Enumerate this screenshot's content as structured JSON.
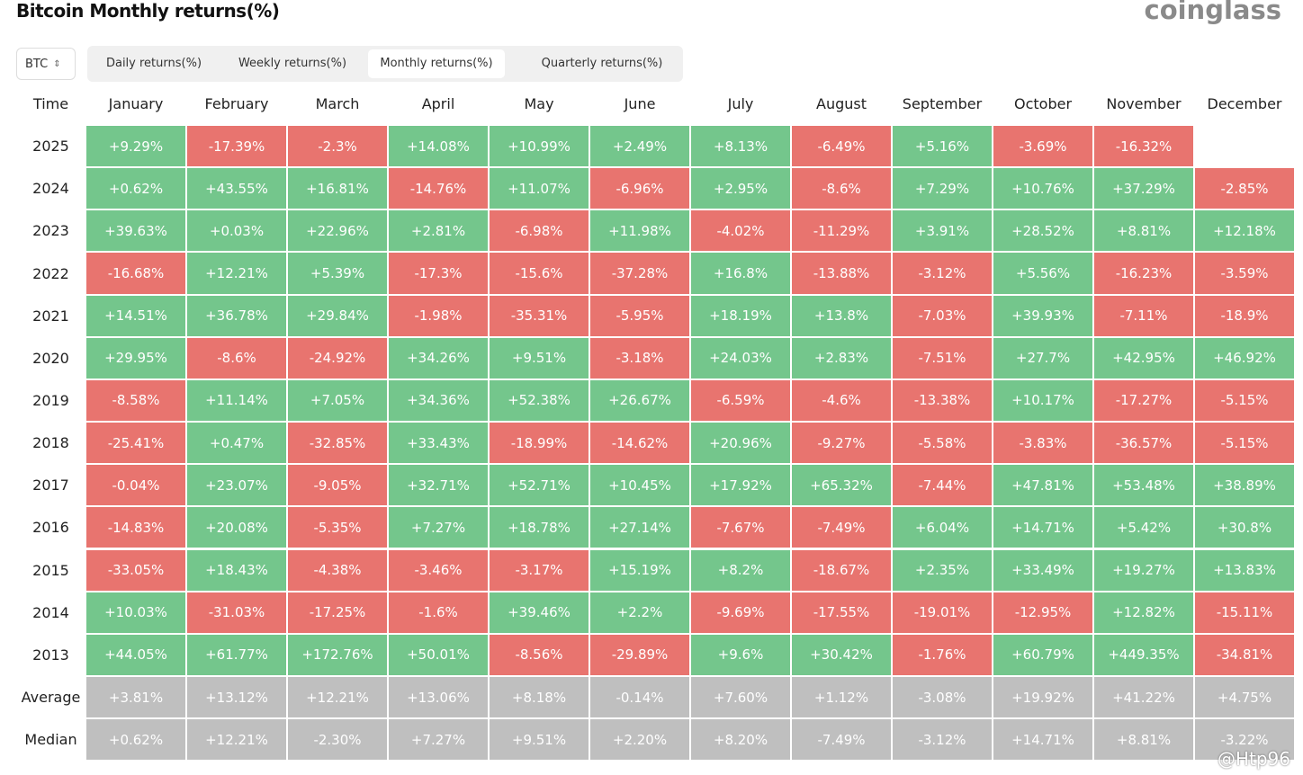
{
  "header": {
    "title": "Bitcoin Monthly returns(%)",
    "logo": "coinglass"
  },
  "controls": {
    "asset": "BTC",
    "tabs": [
      "Daily returns(%)",
      "Weekly returns(%)",
      "Monthly returns(%)",
      "Quarterly returns(%)"
    ],
    "active_tab": 2
  },
  "table": {
    "columns": [
      "Time",
      "January",
      "February",
      "March",
      "April",
      "May",
      "June",
      "July",
      "August",
      "September",
      "October",
      "November",
      "December"
    ],
    "colors": {
      "positive": "#74c68c",
      "negative": "#e8746f",
      "summary": "#bfbfbf"
    },
    "rows": [
      {
        "label": "2025",
        "cells": [
          "+9.29%",
          "-17.39%",
          "-2.3%",
          "+14.08%",
          "+10.99%",
          "+2.49%",
          "+8.13%",
          "-6.49%",
          "+5.16%",
          "-3.69%",
          "-16.32%",
          null
        ]
      },
      {
        "label": "2024",
        "cells": [
          "+0.62%",
          "+43.55%",
          "+16.81%",
          "-14.76%",
          "+11.07%",
          "-6.96%",
          "+2.95%",
          "-8.6%",
          "+7.29%",
          "+10.76%",
          "+37.29%",
          "-2.85%"
        ]
      },
      {
        "label": "2023",
        "cells": [
          "+39.63%",
          "+0.03%",
          "+22.96%",
          "+2.81%",
          "-6.98%",
          "+11.98%",
          "-4.02%",
          "-11.29%",
          "+3.91%",
          "+28.52%",
          "+8.81%",
          "+12.18%"
        ]
      },
      {
        "label": "2022",
        "cells": [
          "-16.68%",
          "+12.21%",
          "+5.39%",
          "-17.3%",
          "-15.6%",
          "-37.28%",
          "+16.8%",
          "-13.88%",
          "-3.12%",
          "+5.56%",
          "-16.23%",
          "-3.59%"
        ]
      },
      {
        "label": "2021",
        "cells": [
          "+14.51%",
          "+36.78%",
          "+29.84%",
          "-1.98%",
          "-35.31%",
          "-5.95%",
          "+18.19%",
          "+13.8%",
          "-7.03%",
          "+39.93%",
          "-7.11%",
          "-18.9%"
        ]
      },
      {
        "label": "2020",
        "cells": [
          "+29.95%",
          "-8.6%",
          "-24.92%",
          "+34.26%",
          "+9.51%",
          "-3.18%",
          "+24.03%",
          "+2.83%",
          "-7.51%",
          "+27.7%",
          "+42.95%",
          "+46.92%"
        ]
      },
      {
        "label": "2019",
        "cells": [
          "-8.58%",
          "+11.14%",
          "+7.05%",
          "+34.36%",
          "+52.38%",
          "+26.67%",
          "-6.59%",
          "-4.6%",
          "-13.38%",
          "+10.17%",
          "-17.27%",
          "-5.15%"
        ]
      },
      {
        "label": "2018",
        "cells": [
          "-25.41%",
          "+0.47%",
          "-32.85%",
          "+33.43%",
          "-18.99%",
          "-14.62%",
          "+20.96%",
          "-9.27%",
          "-5.58%",
          "-3.83%",
          "-36.57%",
          "-5.15%"
        ]
      },
      {
        "label": "2017",
        "cells": [
          "-0.04%",
          "+23.07%",
          "-9.05%",
          "+32.71%",
          "+52.71%",
          "+10.45%",
          "+17.92%",
          "+65.32%",
          "-7.44%",
          "+47.81%",
          "+53.48%",
          "+38.89%"
        ]
      },
      {
        "label": "2016",
        "cells": [
          "-14.83%",
          "+20.08%",
          "-5.35%",
          "+7.27%",
          "+18.78%",
          "+27.14%",
          "-7.67%",
          "-7.49%",
          "+6.04%",
          "+14.71%",
          "+5.42%",
          "+30.8%"
        ]
      },
      {
        "label": "2015",
        "cells": [
          "-33.05%",
          "+18.43%",
          "-4.38%",
          "-3.46%",
          "-3.17%",
          "+15.19%",
          "+8.2%",
          "-18.67%",
          "+2.35%",
          "+33.49%",
          "+19.27%",
          "+13.83%"
        ]
      },
      {
        "label": "2014",
        "cells": [
          "+10.03%",
          "-31.03%",
          "-17.25%",
          "-1.6%",
          "+39.46%",
          "+2.2%",
          "-9.69%",
          "-17.55%",
          "-19.01%",
          "-12.95%",
          "+12.82%",
          "-15.11%"
        ]
      },
      {
        "label": "2013",
        "cells": [
          "+44.05%",
          "+61.77%",
          "+172.76%",
          "+50.01%",
          "-8.56%",
          "-29.89%",
          "+9.6%",
          "+30.42%",
          "-1.76%",
          "+60.79%",
          "+449.35%",
          "-34.81%"
        ]
      }
    ],
    "summary_rows": [
      {
        "label": "Average",
        "cells": [
          "+3.81%",
          "+13.12%",
          "+12.21%",
          "+13.06%",
          "+8.18%",
          "-0.14%",
          "+7.60%",
          "+1.12%",
          "-3.08%",
          "+19.92%",
          "+41.22%",
          "+4.75%"
        ]
      },
      {
        "label": "Median",
        "cells": [
          "+0.62%",
          "+12.21%",
          "-2.30%",
          "+7.27%",
          "+9.51%",
          "+2.20%",
          "+8.20%",
          "-7.49%",
          "-3.12%",
          "+14.71%",
          "+8.81%",
          "-3.22%"
        ]
      }
    ]
  },
  "watermark": "@Htp96"
}
